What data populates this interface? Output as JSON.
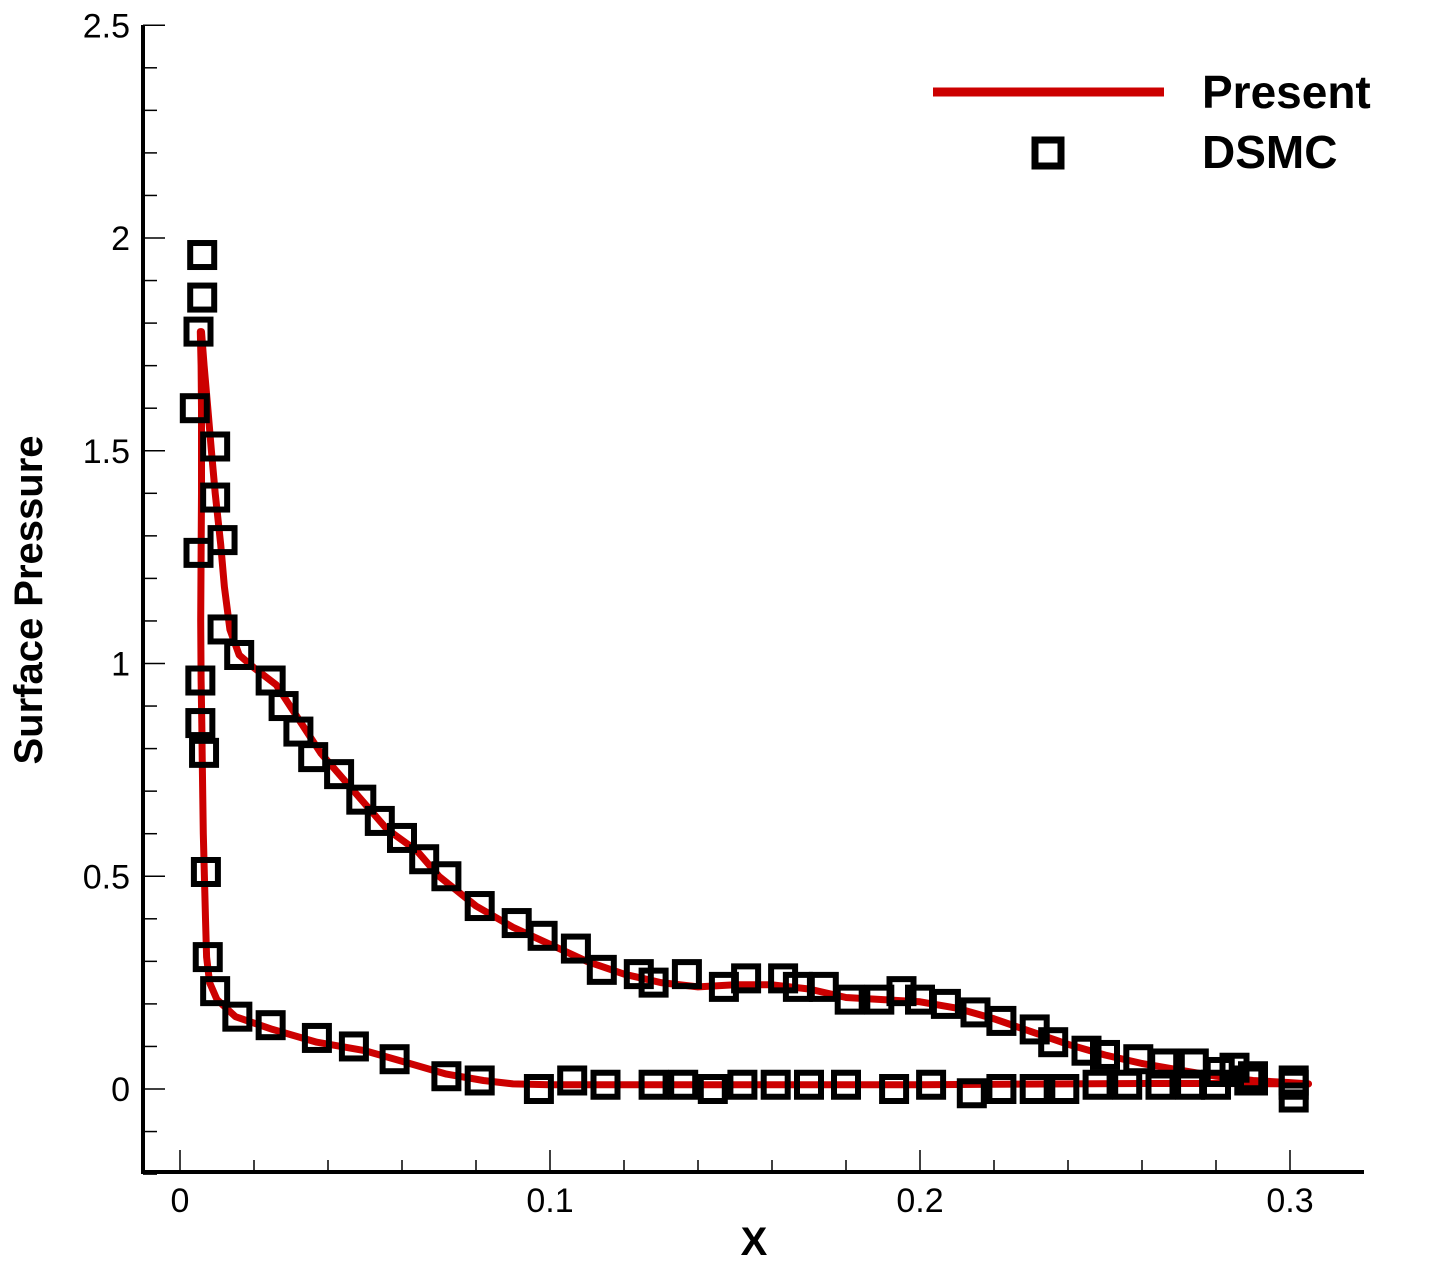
{
  "chart_data": {
    "type": "line",
    "xlabel": "X",
    "ylabel": "Surface Pressure",
    "xlim": [
      -0.01,
      0.32
    ],
    "ylim": [
      -0.2,
      2.5
    ],
    "x_ticks": [
      0,
      0.1,
      0.2,
      0.3
    ],
    "x_tick_labels": [
      "0",
      "0.1",
      "0.2",
      "0.3"
    ],
    "y_ticks": [
      0,
      0.5,
      1,
      1.5,
      2,
      2.5
    ],
    "y_tick_labels": [
      "0",
      "0.5",
      "1",
      "1.5",
      "2",
      "2.5"
    ],
    "legend_position": "top-right",
    "grid": false,
    "series": [
      {
        "name": "Present",
        "style": "line",
        "color": "#cc0000",
        "segments": [
          [
            [
              0.0055,
              1.78
            ],
            [
              0.0057,
              1.7
            ],
            [
              0.0058,
              1.6
            ],
            [
              0.0058,
              1.4
            ],
            [
              0.0057,
              1.26
            ],
            [
              0.0056,
              1.1
            ],
            [
              0.0057,
              0.96
            ],
            [
              0.0059,
              0.86
            ],
            [
              0.006,
              0.78
            ],
            [
              0.0063,
              0.6
            ],
            [
              0.0066,
              0.5
            ],
            [
              0.0069,
              0.4
            ],
            [
              0.0072,
              0.31
            ],
            [
              0.008,
              0.25
            ],
            [
              0.01,
              0.21
            ],
            [
              0.015,
              0.17
            ],
            [
              0.025,
              0.14
            ],
            [
              0.037,
              0.11
            ],
            [
              0.05,
              0.09
            ],
            [
              0.06,
              0.065
            ],
            [
              0.072,
              0.035
            ],
            [
              0.082,
              0.02
            ],
            [
              0.09,
              0.012
            ],
            [
              0.1,
              0.01
            ],
            [
              0.12,
              0.01
            ],
            [
              0.15,
              0.01
            ],
            [
              0.2,
              0.01
            ],
            [
              0.24,
              0.012
            ],
            [
              0.26,
              0.013
            ],
            [
              0.28,
              0.013
            ],
            [
              0.305,
              0.012
            ]
          ],
          [
            [
              0.0058,
              1.78
            ],
            [
              0.0065,
              1.7
            ],
            [
              0.0075,
              1.6
            ],
            [
              0.0085,
              1.5
            ],
            [
              0.0095,
              1.4
            ],
            [
              0.011,
              1.28
            ],
            [
              0.012,
              1.18
            ],
            [
              0.0135,
              1.08
            ],
            [
              0.016,
              1.02
            ],
            [
              0.02,
              0.99
            ],
            [
              0.026,
              0.95
            ],
            [
              0.032,
              0.87
            ],
            [
              0.038,
              0.79
            ],
            [
              0.044,
              0.73
            ],
            [
              0.05,
              0.67
            ],
            [
              0.056,
              0.61
            ],
            [
              0.064,
              0.56
            ],
            [
              0.07,
              0.5
            ],
            [
              0.08,
              0.43
            ],
            [
              0.09,
              0.38
            ],
            [
              0.1,
              0.34
            ],
            [
              0.11,
              0.3
            ],
            [
              0.12,
              0.27
            ],
            [
              0.13,
              0.25
            ],
            [
              0.14,
              0.24
            ],
            [
              0.15,
              0.245
            ],
            [
              0.16,
              0.245
            ],
            [
              0.17,
              0.235
            ],
            [
              0.18,
              0.215
            ],
            [
              0.19,
              0.21
            ],
            [
              0.2,
              0.205
            ],
            [
              0.21,
              0.19
            ],
            [
              0.22,
              0.165
            ],
            [
              0.23,
              0.135
            ],
            [
              0.24,
              0.105
            ],
            [
              0.25,
              0.08
            ],
            [
              0.26,
              0.06
            ],
            [
              0.27,
              0.045
            ],
            [
              0.28,
              0.03
            ],
            [
              0.29,
              0.02
            ],
            [
              0.3,
              0.015
            ],
            [
              0.305,
              0.012
            ]
          ]
        ]
      },
      {
        "name": "DSMC",
        "style": "markers",
        "marker": "square",
        "color": "#000000",
        "points": [
          [
            0.006,
            1.96
          ],
          [
            0.006,
            1.86
          ],
          [
            0.005,
            1.78
          ],
          [
            0.004,
            1.6
          ],
          [
            0.0095,
            1.51
          ],
          [
            0.0095,
            1.39
          ],
          [
            0.0115,
            1.29
          ],
          [
            0.005,
            1.26
          ],
          [
            0.0115,
            1.08
          ],
          [
            0.016,
            1.02
          ],
          [
            0.0245,
            0.96
          ],
          [
            0.028,
            0.9
          ],
          [
            0.032,
            0.84
          ],
          [
            0.036,
            0.78
          ],
          [
            0.043,
            0.74
          ],
          [
            0.049,
            0.68
          ],
          [
            0.054,
            0.63
          ],
          [
            0.06,
            0.59
          ],
          [
            0.066,
            0.54
          ],
          [
            0.072,
            0.5
          ],
          [
            0.081,
            0.43
          ],
          [
            0.091,
            0.39
          ],
          [
            0.098,
            0.36
          ],
          [
            0.107,
            0.33
          ],
          [
            0.114,
            0.28
          ],
          [
            0.124,
            0.27
          ],
          [
            0.128,
            0.25
          ],
          [
            0.137,
            0.27
          ],
          [
            0.147,
            0.24
          ],
          [
            0.153,
            0.26
          ],
          [
            0.163,
            0.26
          ],
          [
            0.167,
            0.24
          ],
          [
            0.174,
            0.24
          ],
          [
            0.181,
            0.21
          ],
          [
            0.189,
            0.21
          ],
          [
            0.195,
            0.23
          ],
          [
            0.2,
            0.21
          ],
          [
            0.207,
            0.2
          ],
          [
            0.215,
            0.18
          ],
          [
            0.222,
            0.16
          ],
          [
            0.231,
            0.14
          ],
          [
            0.236,
            0.11
          ],
          [
            0.245,
            0.09
          ],
          [
            0.25,
            0.08
          ],
          [
            0.259,
            0.07
          ],
          [
            0.266,
            0.06
          ],
          [
            0.274,
            0.06
          ],
          [
            0.281,
            0.04
          ],
          [
            0.285,
            0.05
          ],
          [
            0.29,
            0.03
          ],
          [
            0.29,
            0.02
          ],
          [
            0.301,
            0.01
          ],
          [
            0.301,
            -0.02
          ],
          [
            0.0055,
            0.96
          ],
          [
            0.0055,
            0.86
          ],
          [
            0.0065,
            0.79
          ],
          [
            0.007,
            0.51
          ],
          [
            0.0075,
            0.31
          ],
          [
            0.0095,
            0.23
          ],
          [
            0.0155,
            0.17
          ],
          [
            0.0245,
            0.15
          ],
          [
            0.037,
            0.12
          ],
          [
            0.047,
            0.1
          ],
          [
            0.058,
            0.07
          ],
          [
            0.072,
            0.03
          ],
          [
            0.081,
            0.02
          ],
          [
            0.097,
            0.0
          ],
          [
            0.106,
            0.02
          ],
          [
            0.115,
            0.01
          ],
          [
            0.128,
            0.01
          ],
          [
            0.136,
            0.01
          ],
          [
            0.144,
            0.0
          ],
          [
            0.152,
            0.01
          ],
          [
            0.161,
            0.01
          ],
          [
            0.17,
            0.01
          ],
          [
            0.18,
            0.01
          ],
          [
            0.193,
            0.0
          ],
          [
            0.203,
            0.01
          ],
          [
            0.214,
            -0.01
          ],
          [
            0.222,
            0.0
          ],
          [
            0.231,
            0.0
          ],
          [
            0.239,
            0.0
          ],
          [
            0.248,
            0.01
          ],
          [
            0.256,
            0.01
          ],
          [
            0.265,
            0.01
          ],
          [
            0.273,
            0.01
          ],
          [
            0.28,
            0.01
          ],
          [
            0.289,
            0.02
          ],
          [
            0.301,
            0.02
          ]
        ]
      }
    ]
  }
}
